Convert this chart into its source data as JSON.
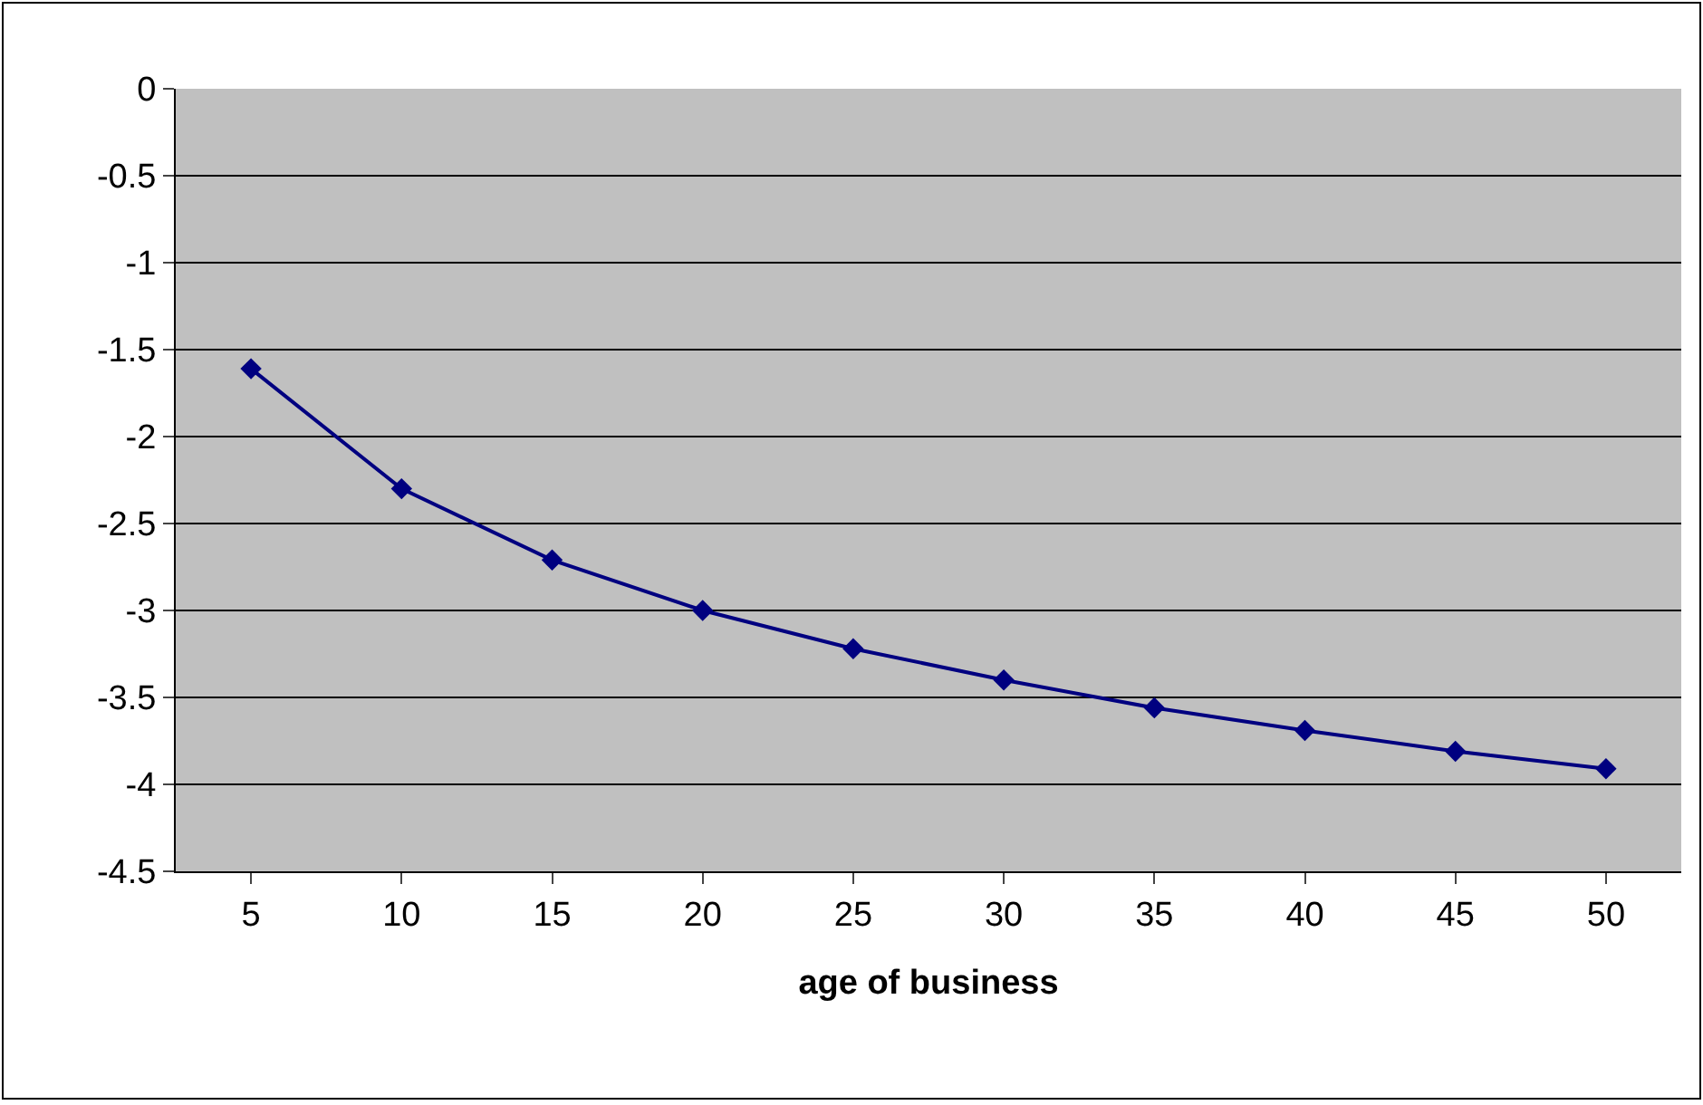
{
  "chart_data": {
    "type": "line",
    "xlabel": "age of business",
    "categories": [
      "5",
      "10",
      "15",
      "20",
      "25",
      "30",
      "35",
      "40",
      "45",
      "50"
    ],
    "series": [
      {
        "color": "#000080",
        "values": [
          -1.61,
          -2.3,
          -2.71,
          -3.0,
          -3.22,
          -3.4,
          -3.56,
          -3.69,
          -3.81,
          -3.91
        ]
      }
    ],
    "ylim": [
      -4.5,
      0
    ],
    "yticks": [
      -4.5,
      -4,
      -3.5,
      -3,
      -2.5,
      -2,
      -1.5,
      -1,
      -0.5,
      0
    ],
    "grid": "y",
    "marker": "diamond",
    "line_style": "solid"
  }
}
